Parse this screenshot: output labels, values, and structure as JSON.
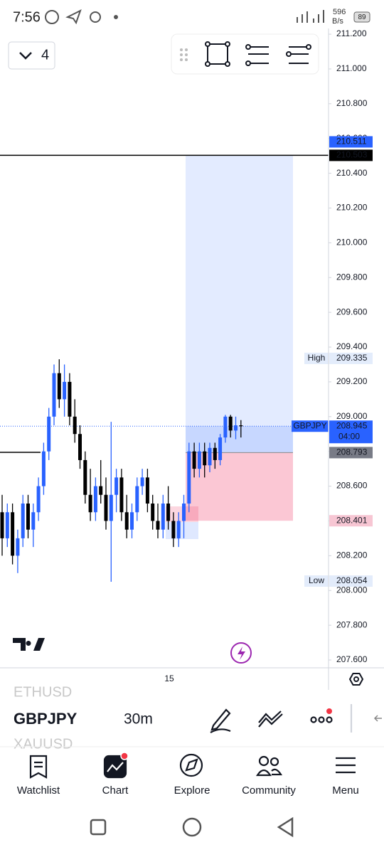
{
  "status_bar": {
    "time": "7:56",
    "net_speed": "596",
    "net_unit": "B/s",
    "battery": "89"
  },
  "toolbar": {
    "layout_count": "4"
  },
  "chart_data": {
    "type": "candlestick",
    "symbol": "GBPJPY",
    "ylim": [
      207.555,
      211.233
    ],
    "yticks": [
      {
        "value": 207.6,
        "label": "207.600"
      },
      {
        "value": 207.8,
        "label": "207.800"
      },
      {
        "value": 208.0,
        "label": "208.000"
      },
      {
        "value": 208.2,
        "label": "208.200"
      },
      {
        "value": 208.4,
        "label": "208.400"
      },
      {
        "value": 208.6,
        "label": "208.600"
      },
      {
        "value": 208.8,
        "label": "208.800"
      },
      {
        "value": 209.0,
        "label": "209.000"
      },
      {
        "value": 209.2,
        "label": "209.200"
      },
      {
        "value": 209.4,
        "label": "209.400"
      },
      {
        "value": 209.6,
        "label": "209.600"
      },
      {
        "value": 209.8,
        "label": "209.800"
      },
      {
        "value": 210.0,
        "label": "210.000"
      },
      {
        "value": 210.2,
        "label": "210.200"
      },
      {
        "value": 210.4,
        "label": "210.400"
      },
      {
        "value": 210.6,
        "label": "210.600"
      },
      {
        "value": 210.8,
        "label": "210.800"
      },
      {
        "value": 211.0,
        "label": "211.000"
      },
      {
        "value": 211.2,
        "label": "211.200"
      }
    ],
    "x_label": "15",
    "colors": {
      "up": "#2962ff",
      "down": "#000000"
    },
    "series": {
      "open": [
        208.45,
        208.3,
        208.45,
        208.2,
        208.3,
        208.5,
        208.35,
        208.45,
        208.6,
        208.8,
        209.0,
        209.25,
        209.1,
        209.2,
        209.0,
        208.9,
        208.75,
        208.55,
        208.45,
        208.6,
        208.55,
        208.4,
        208.55,
        208.65,
        208.45,
        208.35,
        208.45,
        208.6,
        208.65,
        208.5,
        208.4,
        208.35,
        208.5,
        208.4,
        208.3,
        208.4,
        208.5,
        208.8,
        208.7,
        208.8,
        208.72,
        208.82,
        208.75,
        208.88,
        209.0,
        208.92,
        208.95
      ],
      "high": [
        208.55,
        208.5,
        208.5,
        208.35,
        208.55,
        208.55,
        208.5,
        208.65,
        208.85,
        209.05,
        209.3,
        209.33,
        209.3,
        209.25,
        209.1,
        208.95,
        208.8,
        208.7,
        208.65,
        208.75,
        208.65,
        208.97,
        208.7,
        208.7,
        208.55,
        208.5,
        208.65,
        208.7,
        208.7,
        208.55,
        208.5,
        208.55,
        208.6,
        208.45,
        208.45,
        208.55,
        208.85,
        208.85,
        208.85,
        208.85,
        208.85,
        208.85,
        208.9,
        209.01,
        209.01,
        209.0,
        208.98
      ],
      "low": [
        208.2,
        208.25,
        208.15,
        208.1,
        208.25,
        208.3,
        208.25,
        208.4,
        208.55,
        208.75,
        208.95,
        209.05,
        209.0,
        208.95,
        208.85,
        208.7,
        208.5,
        208.4,
        208.4,
        208.5,
        208.35,
        208.05,
        208.45,
        208.4,
        208.3,
        208.3,
        208.4,
        208.55,
        208.45,
        208.35,
        208.3,
        208.3,
        208.35,
        208.25,
        208.25,
        208.3,
        208.45,
        208.65,
        208.65,
        208.65,
        208.68,
        208.7,
        208.72,
        208.85,
        208.88,
        208.87,
        208.88
      ],
      "close": [
        208.3,
        208.45,
        208.2,
        208.3,
        208.5,
        208.35,
        208.45,
        208.6,
        208.8,
        209.0,
        209.25,
        209.1,
        209.2,
        209.0,
        208.9,
        208.75,
        208.55,
        208.45,
        208.6,
        208.55,
        208.4,
        208.55,
        208.65,
        208.45,
        208.35,
        208.45,
        208.6,
        208.65,
        208.5,
        208.4,
        208.35,
        208.5,
        208.4,
        208.3,
        208.4,
        208.5,
        208.8,
        208.7,
        208.8,
        208.72,
        208.82,
        208.75,
        208.88,
        209.0,
        208.92,
        208.95,
        208.945
      ]
    },
    "price_labels": [
      {
        "value": 210.511,
        "color": "#2962ff"
      },
      {
        "value": 210.503,
        "color": "#000000"
      },
      {
        "tag": "High",
        "value": 209.335
      },
      {
        "tag": "GBPJPY",
        "value": 208.945,
        "sub": "04:00",
        "color": "#2962ff"
      },
      {
        "value": 208.793,
        "color": "#787b86"
      },
      {
        "value": 208.401,
        "color": "#f7c6d3"
      },
      {
        "tag": "Low",
        "value": 208.054
      }
    ]
  },
  "symbol_bar": {
    "prev": "ETHUSD",
    "current": "GBPJPY",
    "next": "XAUUSD",
    "interval": "30m"
  },
  "nav": [
    "Watchlist",
    "Chart",
    "Explore",
    "Community",
    "Menu"
  ]
}
